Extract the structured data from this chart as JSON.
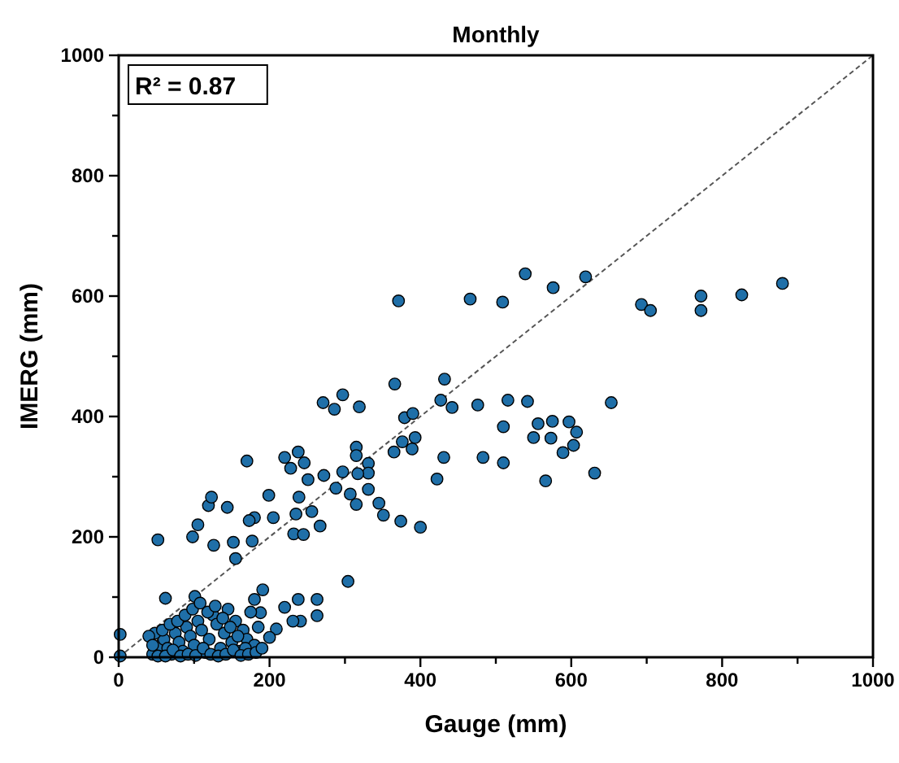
{
  "chart_data": {
    "type": "scatter",
    "title": "Monthly",
    "xlabel": "Gauge (mm)",
    "ylabel": "IMERG (mm)",
    "xlim": [
      0,
      1000
    ],
    "ylim": [
      0,
      1000
    ],
    "xticks": [
      0,
      {
        "value": 100,
        "label": null
      },
      200,
      {
        "value": 300,
        "label": null
      },
      400,
      {
        "value": 500,
        "label": null
      },
      600,
      {
        "value": 700,
        "label": null
      },
      800,
      {
        "value": 900,
        "label": null
      },
      1000
    ],
    "yticks": [
      0,
      {
        "value": 100,
        "label": null
      },
      200,
      {
        "value": 300,
        "label": null
      },
      400,
      {
        "value": 500,
        "label": null
      },
      600,
      {
        "value": 700,
        "label": null
      },
      800,
      {
        "value": 900,
        "label": null
      },
      1000
    ],
    "grid": false,
    "marker": "circle",
    "annotations": [
      "R² = 0.87"
    ],
    "series": [
      {
        "color": "#1f6fa8",
        "x": [
          371,
          466,
          509,
          539,
          576,
          619,
          693,
          705,
          772,
          772,
          826,
          880,
          366,
          432,
          427,
          442,
          476,
          516,
          542,
          653,
          510,
          556,
          575,
          597,
          607,
          550,
          573,
          603,
          589,
          483,
          510,
          566,
          631,
          431,
          422,
          271,
          297,
          286,
          319,
          379,
          390,
          365,
          376,
          393,
          389,
          315,
          315,
          331,
          331,
          317,
          297,
          307,
          331,
          315,
          345,
          351,
          374,
          400,
          288,
          272,
          251,
          239,
          220,
          238,
          228,
          246,
          170,
          199,
          256,
          267,
          235,
          232,
          245,
          180,
          205,
          177,
          52,
          98,
          105,
          119,
          123,
          144,
          126,
          152,
          155,
          173,
          304,
          191,
          180,
          220,
          238,
          263,
          263,
          241,
          209,
          200,
          231,
          188,
          62,
          101,
          2,
          2,
          45,
          55,
          60,
          65,
          70,
          75,
          80,
          85,
          90,
          95,
          100,
          105,
          110,
          115,
          120,
          125,
          130,
          135,
          140,
          145,
          150,
          155,
          160,
          165,
          170,
          175,
          180,
          185,
          48,
          58,
          68,
          78,
          88,
          98,
          108,
          118,
          128,
          138,
          148,
          158,
          168,
          52,
          62,
          72,
          82,
          92,
          102,
          112,
          122,
          132,
          142,
          152,
          162,
          172,
          182,
          190,
          40,
          45
        ],
        "values": [
          592,
          595,
          590,
          637,
          614,
          632,
          586,
          576,
          600,
          576,
          602,
          621,
          454,
          462,
          427,
          415,
          419,
          427,
          425,
          423,
          383,
          388,
          392,
          391,
          374,
          365,
          364,
          352,
          340,
          332,
          323,
          293,
          306,
          332,
          296,
          423,
          436,
          412,
          416,
          398,
          405,
          341,
          358,
          365,
          346,
          349,
          335,
          322,
          306,
          305,
          308,
          271,
          279,
          254,
          256,
          236,
          226,
          216,
          281,
          302,
          295,
          266,
          332,
          341,
          314,
          323,
          326,
          269,
          242,
          218,
          238,
          205,
          204,
          232,
          232,
          193,
          195,
          200,
          220,
          252,
          266,
          249,
          186,
          191,
          164,
          227,
          126,
          112,
          96,
          83,
          96,
          96,
          69,
          60,
          47,
          33,
          60,
          74,
          98,
          101,
          38,
          2,
          5,
          20,
          30,
          15,
          5,
          40,
          25,
          10,
          50,
          35,
          20,
          60,
          45,
          8,
          30,
          70,
          55,
          15,
          40,
          80,
          25,
          60,
          10,
          45,
          30,
          75,
          20,
          50,
          40,
          45,
          55,
          60,
          70,
          80,
          90,
          75,
          85,
          65,
          50,
          35,
          15,
          2,
          2,
          12,
          2,
          5,
          3,
          15,
          5,
          2,
          5,
          12,
          3,
          5,
          8,
          15,
          35,
          20
        ]
      },
      {
        "type": "line",
        "color": "#555555",
        "line_style": "dashed",
        "marker": "none",
        "x": [
          0,
          1000
        ],
        "values": [
          0,
          1000
        ]
      }
    ]
  }
}
